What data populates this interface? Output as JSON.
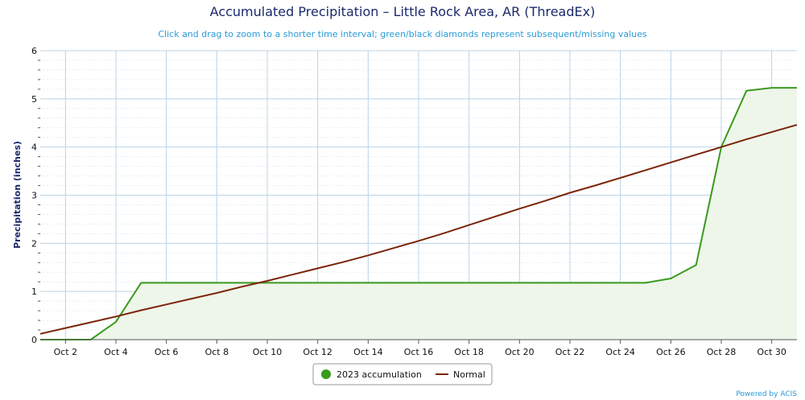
{
  "chart_data": {
    "type": "line",
    "title": "Accumulated Precipitation – Little Rock Area, AR (ThreadEx)",
    "subtitle": "Click and drag to zoom to a shorter time interval; green/black diamonds represent subsequent/missing values",
    "xlabel": "",
    "ylabel": "Precipitation (inches)",
    "ylim": [
      0,
      6
    ],
    "yticks": [
      0,
      1,
      2,
      3,
      4,
      5,
      6
    ],
    "xlim": [
      1,
      31
    ],
    "xticks": [
      2,
      4,
      6,
      8,
      10,
      12,
      14,
      16,
      18,
      20,
      22,
      24,
      26,
      28,
      30
    ],
    "xtick_labels": [
      "Oct 2",
      "Oct 4",
      "Oct 6",
      "Oct 8",
      "Oct 10",
      "Oct 12",
      "Oct 14",
      "Oct 16",
      "Oct 18",
      "Oct 20",
      "Oct 22",
      "Oct 24",
      "Oct 26",
      "Oct 28",
      "Oct 30"
    ],
    "grid": true,
    "legend_position": "bottom-center",
    "series": [
      {
        "name": "2023 accumulation",
        "kind": "area",
        "color": "#3a9a1e",
        "fill": "#eef6ea",
        "x": [
          1,
          2,
          3,
          4,
          5,
          6,
          7,
          8,
          9,
          10,
          11,
          12,
          13,
          14,
          15,
          16,
          17,
          18,
          19,
          20,
          21,
          22,
          23,
          24,
          25,
          26,
          27,
          28,
          29,
          30,
          31
        ],
        "values": [
          0.0,
          0.0,
          0.0,
          0.37,
          1.18,
          1.18,
          1.18,
          1.18,
          1.18,
          1.18,
          1.18,
          1.18,
          1.18,
          1.18,
          1.18,
          1.18,
          1.18,
          1.18,
          1.18,
          1.18,
          1.18,
          1.18,
          1.18,
          1.18,
          1.18,
          1.27,
          1.55,
          4.0,
          5.17,
          5.23,
          5.23
        ]
      },
      {
        "name": "Normal",
        "kind": "line",
        "color": "#7b2508",
        "x": [
          1,
          2,
          3,
          4,
          5,
          6,
          7,
          8,
          9,
          10,
          11,
          12,
          13,
          14,
          15,
          16,
          17,
          18,
          19,
          20,
          21,
          22,
          23,
          24,
          25,
          26,
          27,
          28,
          29,
          30,
          31
        ],
        "values": [
          0.12,
          0.24,
          0.36,
          0.48,
          0.61,
          0.73,
          0.85,
          0.97,
          1.1,
          1.22,
          1.35,
          1.48,
          1.61,
          1.75,
          1.9,
          2.05,
          2.21,
          2.38,
          2.55,
          2.72,
          2.88,
          3.05,
          3.2,
          3.36,
          3.52,
          3.68,
          3.84,
          4.0,
          4.16,
          4.31,
          4.46
        ]
      }
    ]
  },
  "credit": "Powered by ACIS"
}
